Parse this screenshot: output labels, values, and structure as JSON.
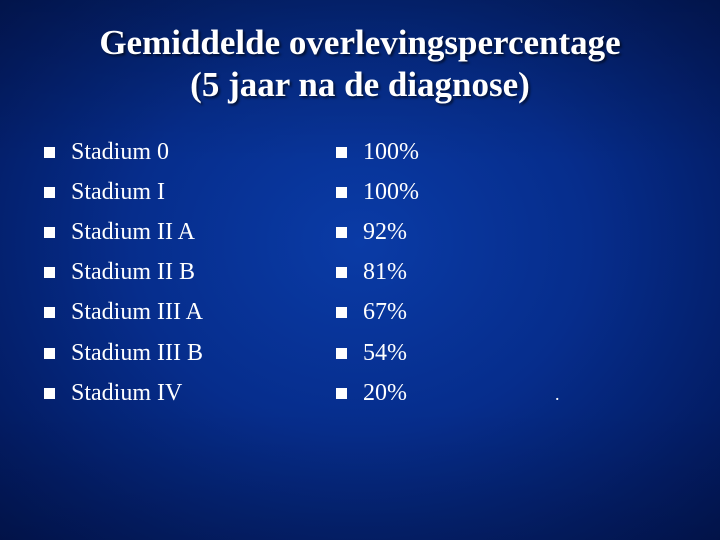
{
  "title": {
    "line1": "Gemiddelde overlevingspercentage",
    "line2": "(5 jaar na de diagnose)"
  },
  "stages": [
    "Stadium 0",
    "Stadium I",
    "Stadium II A",
    "Stadium II B",
    "Stadium III A",
    "Stadium III B",
    "Stadium IV"
  ],
  "percentages": [
    "100%",
    "100%",
    "92%",
    "81%",
    "67%",
    "54%",
    "20%"
  ],
  "stray_mark": ".",
  "colors": {
    "background": "#062d8c",
    "text": "#ffffff",
    "bullet": "#ffffff"
  },
  "icons": {
    "bullet": "square-bullet-icon"
  }
}
